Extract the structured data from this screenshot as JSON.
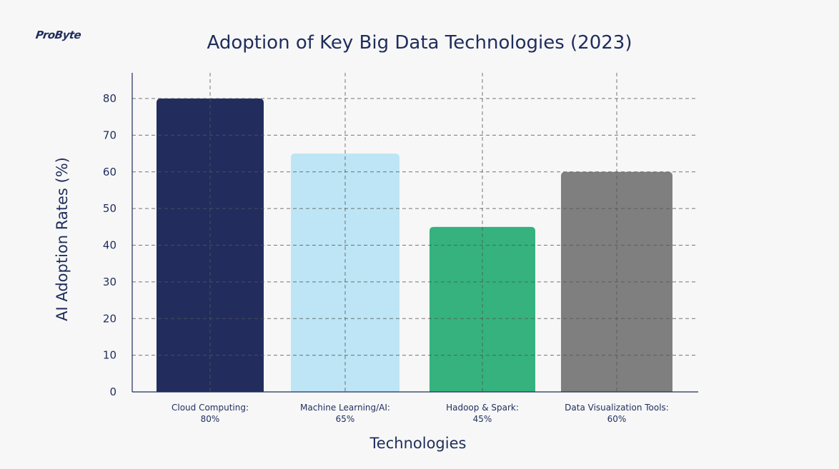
{
  "brand": {
    "logo_text": "ProByte"
  },
  "chart_data": {
    "type": "bar",
    "title": "Adoption of Key Big Data Technologies (2023)",
    "xlabel": "Technologies",
    "ylabel": "AI Adoption Rates (%)",
    "ylim": [
      0,
      85
    ],
    "yticks": [
      0,
      10,
      20,
      30,
      40,
      50,
      60,
      70,
      80
    ],
    "grid": true,
    "categories": [
      {
        "line1": "Cloud Computing:",
        "line2": "80%"
      },
      {
        "line1": "Machine Learning/AI:",
        "line2": "65%"
      },
      {
        "line1": "Hadoop & Spark:",
        "line2": "45%"
      },
      {
        "line1": "Data Visualization Tools:",
        "line2": "60%"
      }
    ],
    "values": [
      80,
      65,
      45,
      60
    ],
    "colors": [
      "#222d5e",
      "#bde5f5",
      "#35b27e",
      "#7f7f7f"
    ],
    "grid_color": "#555555",
    "axis_color": "#1f2d5c"
  }
}
